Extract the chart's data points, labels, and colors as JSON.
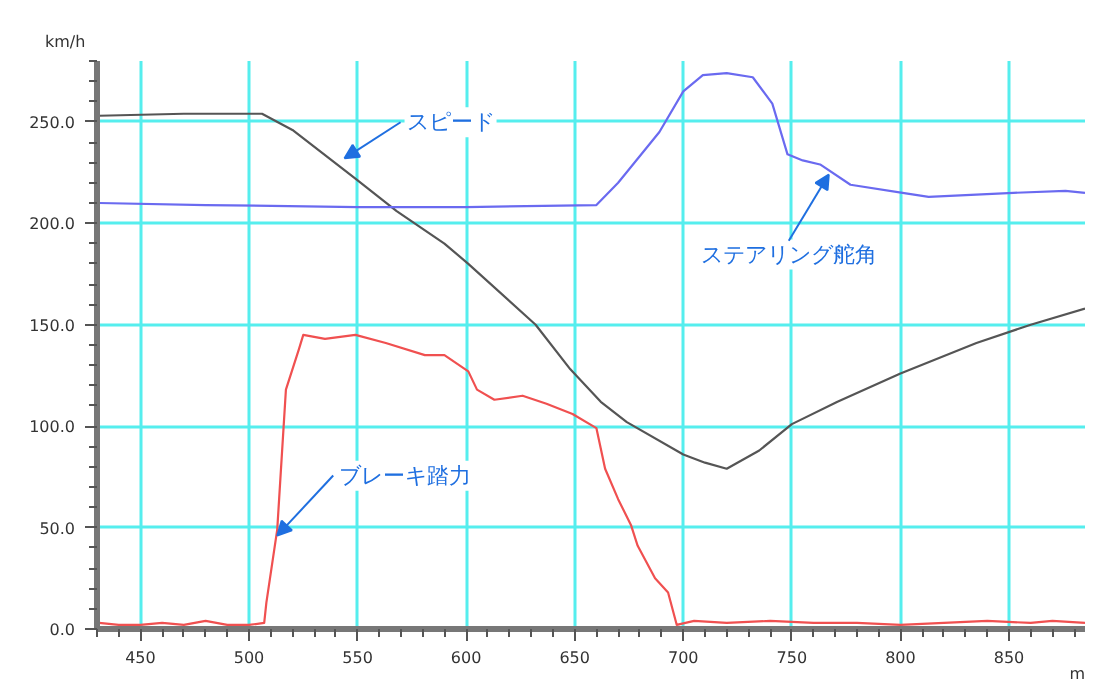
{
  "chart_data": {
    "type": "line",
    "ylabel": "km/h",
    "xlabel": "m",
    "xlim": [
      430,
      885
    ],
    "ylim": [
      0,
      280
    ],
    "xticks": [
      450,
      500,
      550,
      600,
      650,
      700,
      750,
      800,
      850
    ],
    "yticks": [
      {
        "value": 0,
        "label": "0.0"
      },
      {
        "value": 50,
        "label": "50.0"
      },
      {
        "value": 100,
        "label": "100.0"
      },
      {
        "value": 150,
        "label": "150.0"
      },
      {
        "value": 200,
        "label": "200.0"
      },
      {
        "value": 250,
        "label": "250.0"
      }
    ],
    "grid": true,
    "marker": "none",
    "line_style": "solid",
    "series": [
      {
        "color": "#555555",
        "x": [
          431,
          470,
          506,
          520,
          549,
          568,
          590,
          601,
          632,
          648,
          662,
          674,
          700,
          710,
          720,
          735,
          750,
          771,
          800,
          835,
          860,
          885
        ],
        "values": [
          253,
          254,
          254,
          246,
          222,
          206,
          190,
          180,
          150,
          128,
          112,
          102,
          86,
          82,
          79,
          88,
          101,
          112,
          126,
          141,
          150,
          158
        ]
      },
      {
        "color": "#6a6af0",
        "x": [
          431,
          480,
          550,
          600,
          660,
          670,
          689,
          700,
          709,
          720,
          732,
          741,
          748,
          755,
          763,
          777,
          801,
          813,
          852,
          876,
          885
        ],
        "values": [
          210,
          209,
          208,
          208,
          209,
          220,
          245,
          265,
          273,
          274,
          272,
          259,
          234,
          231,
          229,
          219,
          215,
          213,
          215,
          216,
          215
        ]
      },
      {
        "color": "#f05050",
        "x": [
          431,
          440,
          450,
          460,
          470,
          480,
          490,
          500,
          507,
          508,
          513,
          517,
          523,
          525,
          535,
          549,
          563,
          581,
          590,
          601,
          605,
          613,
          626,
          637,
          649,
          660,
          664,
          670,
          676,
          679,
          687,
          693,
          697,
          705,
          720,
          740,
          760,
          780,
          800,
          820,
          840,
          860,
          870,
          885
        ],
        "values": [
          3,
          2,
          2,
          3,
          2,
          4,
          2,
          2,
          3,
          13,
          49,
          118,
          138,
          145,
          143,
          145,
          141,
          135,
          135,
          127,
          118,
          113,
          115,
          111,
          106,
          99,
          79,
          64,
          51,
          41,
          25,
          18,
          2,
          4,
          3,
          4,
          3,
          3,
          2,
          3,
          4,
          3,
          4,
          3
        ]
      }
    ],
    "annotations": [
      {
        "text": "スピード",
        "x": 544,
        "y": 232
      },
      {
        "text": "ステアリング舵角",
        "x": 767,
        "y": 224
      },
      {
        "text": "ブレーキ踏力",
        "x": 513,
        "y": 46
      }
    ]
  }
}
